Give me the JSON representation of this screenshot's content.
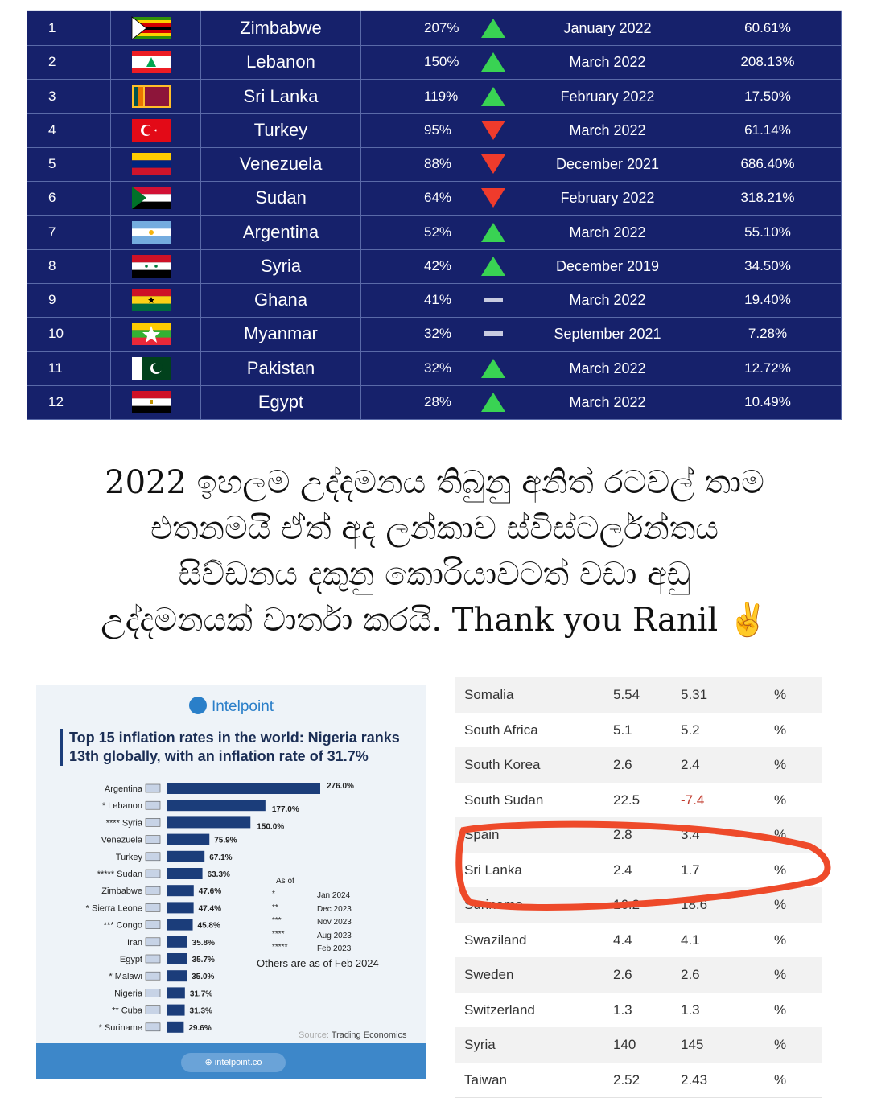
{
  "top_table": {
    "rows": [
      {
        "rank": "1",
        "country": "Zimbabwe",
        "change": "207%",
        "trend": "up",
        "date": "January 2022",
        "rate": "60.61%",
        "flag": "zimbabwe-flag"
      },
      {
        "rank": "2",
        "country": "Lebanon",
        "change": "150%",
        "trend": "up",
        "date": "March 2022",
        "rate": "208.13%",
        "flag": "lebanon-flag"
      },
      {
        "rank": "3",
        "country": "Sri Lanka",
        "change": "119%",
        "trend": "up",
        "date": "February 2022",
        "rate": "17.50%",
        "flag": "sri-lanka-flag"
      },
      {
        "rank": "4",
        "country": "Turkey",
        "change": "95%",
        "trend": "down",
        "date": "March 2022",
        "rate": "61.14%",
        "flag": "turkey-flag"
      },
      {
        "rank": "5",
        "country": "Venezuela",
        "change": "88%",
        "trend": "down",
        "date": "December 2021",
        "rate": "686.40%",
        "flag": "venezuela-flag"
      },
      {
        "rank": "6",
        "country": "Sudan",
        "change": "64%",
        "trend": "down",
        "date": "February 2022",
        "rate": "318.21%",
        "flag": "sudan-flag"
      },
      {
        "rank": "7",
        "country": "Argentina",
        "change": "52%",
        "trend": "up",
        "date": "March 2022",
        "rate": "55.10%",
        "flag": "argentina-flag"
      },
      {
        "rank": "8",
        "country": "Syria",
        "change": "42%",
        "trend": "up",
        "date": "December 2019",
        "rate": "34.50%",
        "flag": "syria-flag"
      },
      {
        "rank": "9",
        "country": "Ghana",
        "change": "41%",
        "trend": "flat",
        "date": "March 2022",
        "rate": "19.40%",
        "flag": "ghana-flag"
      },
      {
        "rank": "10",
        "country": "Myanmar",
        "change": "32%",
        "trend": "flat",
        "date": "September 2021",
        "rate": "7.28%",
        "flag": "myanmar-flag"
      },
      {
        "rank": "11",
        "country": "Pakistan",
        "change": "32%",
        "trend": "up",
        "date": "March 2022",
        "rate": "12.72%",
        "flag": "pakistan-flag"
      },
      {
        "rank": "12",
        "country": "Egypt",
        "change": "28%",
        "trend": "up",
        "date": "March 2022",
        "rate": "10.49%",
        "flag": "egypt-flag"
      }
    ]
  },
  "caption": {
    "line1": "2022 ඉහලම උද්දමනය තිබුනු  අනිත් රටවල් තාම",
    "line2": "එතනමයි ඒත් අද ලන්කාව ස්විස්ටර්ලන්තය",
    "line3": "සිව්ඩනය දකුනු කොරියාවටත් වඩා අඩු",
    "line4": "උද්දමනයක් වාර්තා කරයි. Thank you Ranil ✌️"
  },
  "intelpoint": {
    "logo": "Intelpoint",
    "title": "Top 15 inflation rates in the world: Nigeria ranks 13th globally, with an inflation rate of 31.7%",
    "as_of_title": "As of",
    "as_of": [
      {
        "sym": "*",
        "date": "Jan 2024"
      },
      {
        "sym": "**",
        "date": "Dec 2023"
      },
      {
        "sym": "***",
        "date": "Nov 2023"
      },
      {
        "sym": "****",
        "date": "Aug 2023"
      },
      {
        "sym": "*****",
        "date": "Feb 2023"
      }
    ],
    "others_note": "Others are as of Feb 2024",
    "source_label": "Source:",
    "source_value": "Trading Economics",
    "footer": "intelpoint.co"
  },
  "chart_data": {
    "type": "bar",
    "orientation": "horizontal",
    "title": "Top 15 inflation rates in the world: Nigeria ranks 13th globally, with an inflation rate of 31.7%",
    "categories": [
      "Argentina",
      "* Lebanon",
      "**** Syria",
      "Venezuela",
      "Turkey",
      "***** Sudan",
      "Zimbabwe",
      "* Sierra Leone",
      "*** Congo",
      "Iran",
      "Egypt",
      "* Malawi",
      "Nigeria",
      "** Cuba",
      "* Suriname"
    ],
    "values": [
      276.0,
      177.0,
      150.0,
      75.9,
      67.1,
      63.3,
      47.6,
      47.4,
      45.8,
      35.8,
      35.7,
      35.0,
      31.7,
      31.3,
      29.6
    ],
    "labels": [
      "276.0%",
      "177.0%",
      "150.0%",
      "75.9%",
      "67.1%",
      "63.3%",
      "47.6%",
      "47.4%",
      "45.8%",
      "35.8%",
      "35.7%",
      "35.0%",
      "31.7%",
      "31.3%",
      "29.6%"
    ],
    "bar_color": "#1b3d7a"
  },
  "right_table": {
    "rows": [
      {
        "name": "Somalia",
        "last": "5.54",
        "prev": "5.31",
        "unit": "%",
        "neg": false
      },
      {
        "name": "South Africa",
        "last": "5.1",
        "prev": "5.2",
        "unit": "%",
        "neg": false
      },
      {
        "name": "South Korea",
        "last": "2.6",
        "prev": "2.4",
        "unit": "%",
        "neg": false
      },
      {
        "name": "South Sudan",
        "last": "22.5",
        "prev": "-7.4",
        "unit": "%",
        "neg": true
      },
      {
        "name": "Spain",
        "last": "2.8",
        "prev": "3.4",
        "unit": "%",
        "neg": false
      },
      {
        "name": "Sri Lanka",
        "last": "2.4",
        "prev": "1.7",
        "unit": "%",
        "neg": false
      },
      {
        "name": "Suriname",
        "last": "16.2",
        "prev": "18.6",
        "unit": "%",
        "neg": false
      },
      {
        "name": "Swaziland",
        "last": "4.4",
        "prev": "4.1",
        "unit": "%",
        "neg": false
      },
      {
        "name": "Sweden",
        "last": "2.6",
        "prev": "2.6",
        "unit": "%",
        "neg": false
      },
      {
        "name": "Switzerland",
        "last": "1.3",
        "prev": "1.3",
        "unit": "%",
        "neg": false
      },
      {
        "name": "Syria",
        "last": "140",
        "prev": "145",
        "unit": "%",
        "neg": false
      },
      {
        "name": "Taiwan",
        "last": "2.52",
        "prev": "2.43",
        "unit": "%",
        "neg": false
      }
    ],
    "highlight_color": "#ee4a2a"
  },
  "colors": {
    "table_bg": "#16216b",
    "up": "#39d353",
    "down": "#ef3b2c",
    "flat": "#c8cbe0"
  }
}
